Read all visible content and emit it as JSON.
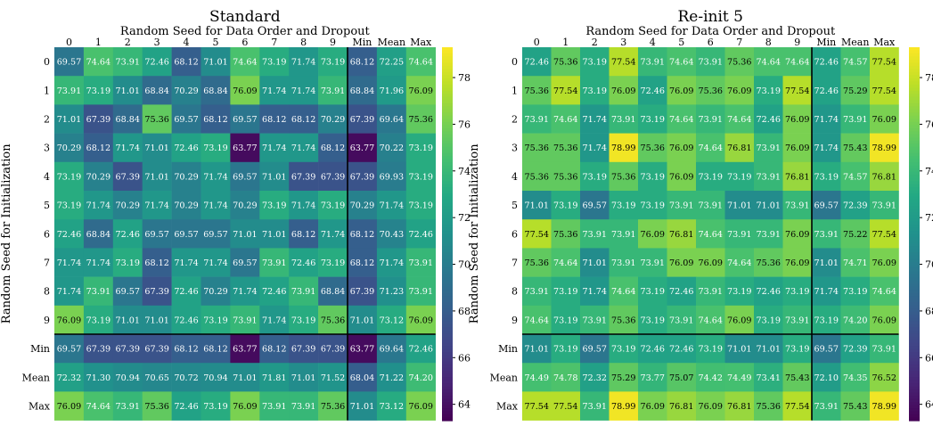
{
  "chart_data": [
    {
      "type": "heatmap",
      "title": "Standard",
      "xlabel": "Random Seed for Data Order and Dropout",
      "ylabel": "Random Seed for Initialization",
      "x_categories": [
        "0",
        "1",
        "2",
        "3",
        "4",
        "5",
        "6",
        "7",
        "8",
        "9",
        "Min",
        "Mean",
        "Max"
      ],
      "y_categories": [
        "0",
        "1",
        "2",
        "3",
        "4",
        "5",
        "6",
        "7",
        "8",
        "9",
        "Min",
        "Mean",
        "Max"
      ],
      "values": [
        [
          69.57,
          74.64,
          73.91,
          72.46,
          68.12,
          71.01,
          74.64,
          73.19,
          71.74,
          73.19,
          68.12,
          72.25,
          74.64
        ],
        [
          73.91,
          73.19,
          71.01,
          68.84,
          70.29,
          68.84,
          76.09,
          71.74,
          71.74,
          73.91,
          68.84,
          71.96,
          76.09
        ],
        [
          71.01,
          67.39,
          68.84,
          75.36,
          69.57,
          68.12,
          69.57,
          68.12,
          68.12,
          70.29,
          67.39,
          69.64,
          75.36
        ],
        [
          70.29,
          68.12,
          71.74,
          71.01,
          72.46,
          73.19,
          63.77,
          71.74,
          71.74,
          68.12,
          63.77,
          70.22,
          73.19
        ],
        [
          73.19,
          70.29,
          67.39,
          71.01,
          70.29,
          71.74,
          69.57,
          71.01,
          67.39,
          67.39,
          67.39,
          69.93,
          73.19
        ],
        [
          73.19,
          71.74,
          70.29,
          71.74,
          70.29,
          71.74,
          70.29,
          73.19,
          71.74,
          73.19,
          70.29,
          71.74,
          73.19
        ],
        [
          72.46,
          68.84,
          72.46,
          69.57,
          69.57,
          69.57,
          71.01,
          71.01,
          68.12,
          71.74,
          68.12,
          70.43,
          72.46
        ],
        [
          71.74,
          71.74,
          73.19,
          68.12,
          71.74,
          71.74,
          69.57,
          73.91,
          72.46,
          73.19,
          68.12,
          71.74,
          73.91
        ],
        [
          71.74,
          73.91,
          69.57,
          67.39,
          72.46,
          70.29,
          71.74,
          72.46,
          73.91,
          68.84,
          67.39,
          71.23,
          73.91
        ],
        [
          76.09,
          73.19,
          71.01,
          71.01,
          72.46,
          73.19,
          73.91,
          71.74,
          73.19,
          75.36,
          71.01,
          73.12,
          76.09
        ],
        [
          69.57,
          67.39,
          67.39,
          67.39,
          68.12,
          68.12,
          63.77,
          68.12,
          67.39,
          67.39,
          63.77,
          69.64,
          72.46
        ],
        [
          72.32,
          71.3,
          70.94,
          70.65,
          70.72,
          70.94,
          71.01,
          71.81,
          71.01,
          71.52,
          68.04,
          71.22,
          74.2
        ],
        [
          76.09,
          74.64,
          73.91,
          75.36,
          72.46,
          73.19,
          76.09,
          73.91,
          73.91,
          75.36,
          71.01,
          73.12,
          76.09
        ]
      ],
      "colorbar_ticks": [
        64,
        66,
        68,
        70,
        72,
        74,
        76,
        78
      ],
      "vmin": 63.3,
      "vmax": 79.3,
      "colormap": "viridis"
    },
    {
      "type": "heatmap",
      "title": "Re-init 5",
      "xlabel": "Random Seed for Data Order and Dropout",
      "ylabel": "Random Seed for Initialization",
      "x_categories": [
        "0",
        "1",
        "2",
        "3",
        "4",
        "5",
        "6",
        "7",
        "8",
        "9",
        "Min",
        "Mean",
        "Max"
      ],
      "y_categories": [
        "0",
        "1",
        "2",
        "3",
        "4",
        "5",
        "6",
        "7",
        "8",
        "9",
        "Min",
        "Mean",
        "Max"
      ],
      "values": [
        [
          72.46,
          75.36,
          73.19,
          77.54,
          73.91,
          74.64,
          73.91,
          75.36,
          74.64,
          74.64,
          72.46,
          74.57,
          77.54
        ],
        [
          75.36,
          77.54,
          73.19,
          76.09,
          72.46,
          76.09,
          75.36,
          76.09,
          73.19,
          77.54,
          72.46,
          75.29,
          77.54
        ],
        [
          73.91,
          74.64,
          71.74,
          73.91,
          73.19,
          74.64,
          73.91,
          74.64,
          72.46,
          76.09,
          71.74,
          73.91,
          76.09
        ],
        [
          75.36,
          75.36,
          71.74,
          78.99,
          75.36,
          76.09,
          74.64,
          76.81,
          73.91,
          76.09,
          71.74,
          75.43,
          78.99
        ],
        [
          75.36,
          75.36,
          73.19,
          75.36,
          73.19,
          76.09,
          73.19,
          73.19,
          73.91,
          76.81,
          73.19,
          74.57,
          76.81
        ],
        [
          71.01,
          73.19,
          69.57,
          73.19,
          73.19,
          73.91,
          73.91,
          71.01,
          71.01,
          73.91,
          69.57,
          72.39,
          73.91
        ],
        [
          77.54,
          75.36,
          73.91,
          73.91,
          76.09,
          76.81,
          74.64,
          73.91,
          73.91,
          76.09,
          73.91,
          75.22,
          77.54
        ],
        [
          75.36,
          74.64,
          71.01,
          73.91,
          73.91,
          76.09,
          76.09,
          74.64,
          75.36,
          76.09,
          71.01,
          74.71,
          76.09
        ],
        [
          73.91,
          73.19,
          71.74,
          74.64,
          73.19,
          72.46,
          73.91,
          73.19,
          72.46,
          73.19,
          71.74,
          73.19,
          74.64
        ],
        [
          74.64,
          73.19,
          73.91,
          75.36,
          73.19,
          73.91,
          74.64,
          76.09,
          73.19,
          73.91,
          73.19,
          74.2,
          76.09
        ],
        [
          71.01,
          73.19,
          69.57,
          73.19,
          72.46,
          72.46,
          73.19,
          71.01,
          71.01,
          73.19,
          69.57,
          72.39,
          73.91
        ],
        [
          74.49,
          74.78,
          72.32,
          75.29,
          73.77,
          75.07,
          74.42,
          74.49,
          73.41,
          75.43,
          72.1,
          74.35,
          76.52
        ],
        [
          77.54,
          77.54,
          73.91,
          78.99,
          76.09,
          76.81,
          76.09,
          76.81,
          75.36,
          77.54,
          73.91,
          75.43,
          78.99
        ]
      ],
      "colorbar_ticks": [
        64,
        66,
        68,
        70,
        72,
        74,
        76,
        78
      ],
      "vmin": 63.3,
      "vmax": 79.3,
      "colormap": "viridis"
    }
  ]
}
